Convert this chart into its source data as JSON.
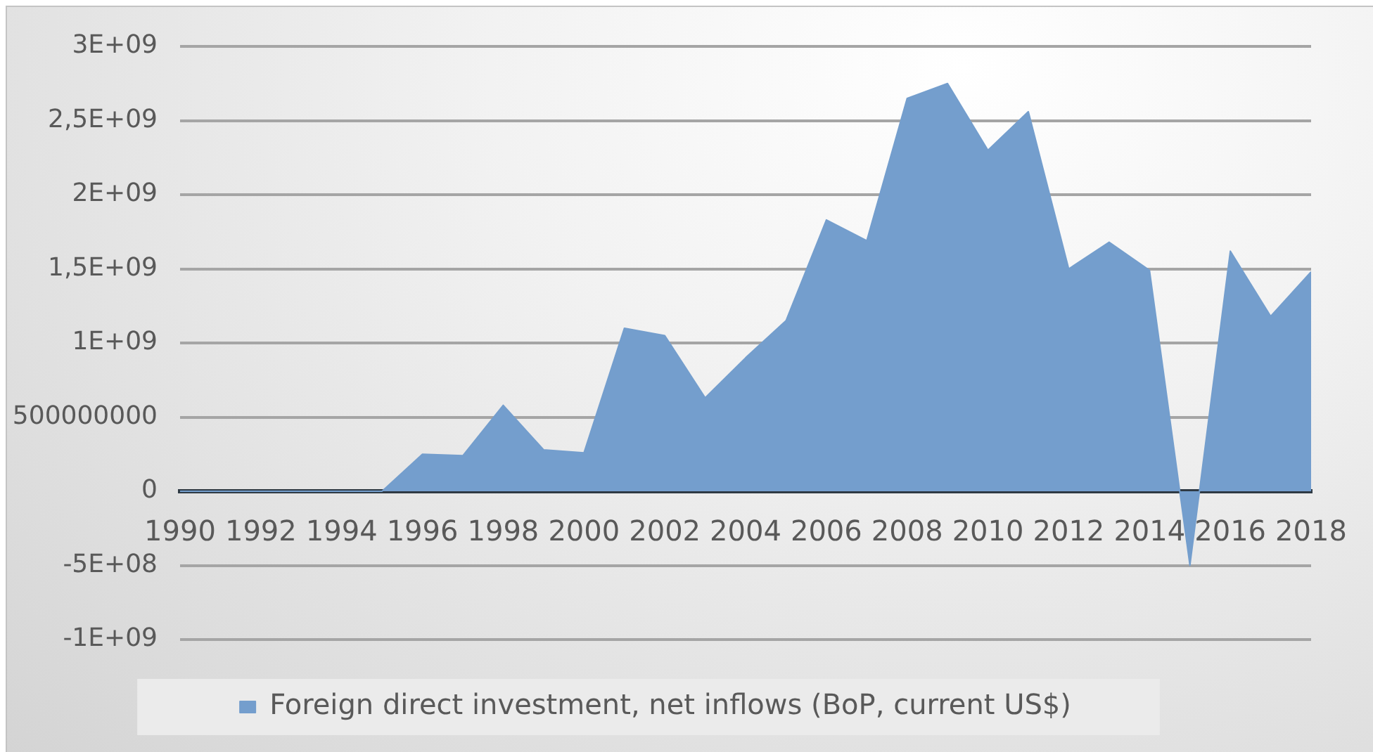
{
  "chart_data": {
    "type": "area",
    "x": [
      1990,
      1991,
      1992,
      1993,
      1994,
      1995,
      1996,
      1997,
      1998,
      1999,
      2000,
      2001,
      2002,
      2003,
      2004,
      2005,
      2006,
      2007,
      2008,
      2009,
      2010,
      2011,
      2012,
      2013,
      2014,
      2015,
      2016,
      2017,
      2018
    ],
    "series": [
      {
        "name": "Foreign direct investment, net inflows (BoP, current US$)",
        "color": "#749ecd",
        "values": [
          0,
          0,
          0,
          0,
          0,
          0,
          250000000,
          240000000,
          580000000,
          280000000,
          260000000,
          1100000000,
          1050000000,
          630000000,
          900000000,
          1150000000,
          1830000000,
          1690000000,
          2650000000,
          2750000000,
          2300000000,
          2560000000,
          1500000000,
          1680000000,
          1490000000,
          -500000000,
          1620000000,
          1180000000,
          1480000000
        ]
      }
    ],
    "xlim": [
      1990,
      2018
    ],
    "xticks": [
      1990,
      1992,
      1994,
      1996,
      1998,
      2000,
      2002,
      2004,
      2006,
      2008,
      2010,
      2012,
      2014,
      2016,
      2018
    ],
    "ylim": [
      -1000000000,
      3000000000
    ],
    "yticks": [
      {
        "value": -1000000000,
        "label": "-1E+09"
      },
      {
        "value": -500000000,
        "label": "-5E+08"
      },
      0,
      {
        "value": 500000000,
        "label": "500000000"
      },
      {
        "value": 1000000000,
        "label": "1E+09"
      },
      {
        "value": 1500000000,
        "label": "1,5E+09"
      },
      {
        "value": 2000000000,
        "label": "2E+09"
      },
      {
        "value": 2500000000,
        "label": "2,5E+09"
      },
      {
        "value": 3000000000,
        "label": "3E+09"
      }
    ],
    "grid": "y",
    "legend": "bottom"
  }
}
